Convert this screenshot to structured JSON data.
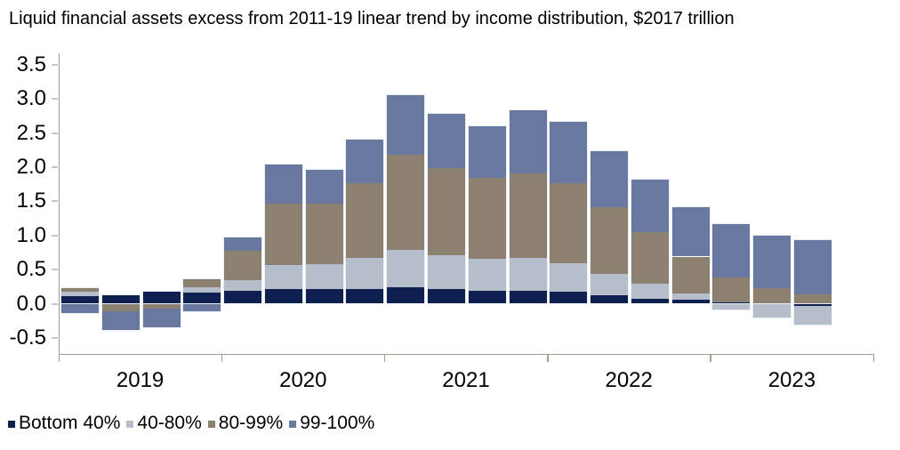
{
  "title": "Liquid financial assets excess from 2011-19 linear trend by income distribution, $2017 trillion",
  "legend": {
    "items": [
      {
        "label": "Bottom 40%",
        "color": "#0d2050"
      },
      {
        "label": "40-80%",
        "color": "#b6bdcb"
      },
      {
        "label": "80-99%",
        "color": "#8c8170"
      },
      {
        "label": "99-100%",
        "color": "#68789f"
      }
    ]
  },
  "colors": {
    "bottom40": "#0d2050",
    "p40_80": "#b6bdcb",
    "p80_99": "#8c8170",
    "p99_100": "#68789f",
    "bar_outline": "#e9edf4",
    "y_axis_line": "#9b9b9b",
    "x_axis_line": "#a89e90"
  },
  "chart_data": {
    "type": "bar",
    "stacked": true,
    "title": "Liquid financial assets excess from 2011-19 linear trend by income distribution, $2017 trillion",
    "unit": "$2017 trillion",
    "xlabel": "",
    "ylabel": "",
    "grid": false,
    "legend_position": "bottom-left",
    "ylim": [
      -0.75,
      3.67
    ],
    "y_tick_labels": [
      "3.5",
      "3.0",
      "2.5",
      "2.0",
      "1.5",
      "1.0",
      "0.5",
      "0.0",
      "-0.5"
    ],
    "y_tick_values": [
      3.5,
      3.0,
      2.5,
      2.0,
      1.5,
      1.0,
      0.5,
      0.0,
      -0.5
    ],
    "x_tick_labels": [
      "2019",
      "2020",
      "2021",
      "2022",
      "2023"
    ],
    "bars_per_year": [
      4,
      4,
      4,
      4,
      3
    ],
    "n_bars": 19,
    "periods": [
      "2019Q1",
      "2019Q2",
      "2019Q3",
      "2019Q4",
      "2020Q1",
      "2020Q2",
      "2020Q3",
      "2020Q4",
      "2021Q1",
      "2021Q2",
      "2021Q3",
      "2021Q4",
      "2022Q1",
      "2022Q2",
      "2022Q3",
      "2022Q4",
      "2023Q1",
      "2023Q2",
      "2023Q3"
    ],
    "series": [
      {
        "name": "Bottom 40%",
        "color": "#0d2050",
        "values": [
          0.11,
          0.12,
          0.17,
          0.16,
          0.19,
          0.22,
          0.22,
          0.22,
          0.24,
          0.22,
          0.19,
          0.19,
          0.17,
          0.12,
          0.07,
          0.06,
          0.02,
          0.0,
          -0.03
        ]
      },
      {
        "name": "40-80%",
        "color": "#b6bdcb",
        "values": [
          0.06,
          0.0,
          0.0,
          0.08,
          0.16,
          0.35,
          0.36,
          0.45,
          0.55,
          0.49,
          0.47,
          0.48,
          0.42,
          0.32,
          0.22,
          0.09,
          -0.08,
          -0.2,
          -0.28
        ]
      },
      {
        "name": "80-99%",
        "color": "#8c8170",
        "values": [
          0.06,
          -0.11,
          -0.07,
          0.12,
          0.42,
          0.9,
          0.88,
          1.09,
          1.39,
          1.27,
          1.18,
          1.24,
          1.18,
          0.97,
          0.76,
          0.54,
          0.36,
          0.23,
          0.14
        ]
      },
      {
        "name": "99-100%",
        "color": "#68789f",
        "values": [
          -0.14,
          -0.27,
          -0.27,
          -0.11,
          0.2,
          0.57,
          0.5,
          0.64,
          0.87,
          0.8,
          0.76,
          0.92,
          0.89,
          0.82,
          0.77,
          0.72,
          0.78,
          0.77,
          0.79
        ]
      }
    ]
  }
}
